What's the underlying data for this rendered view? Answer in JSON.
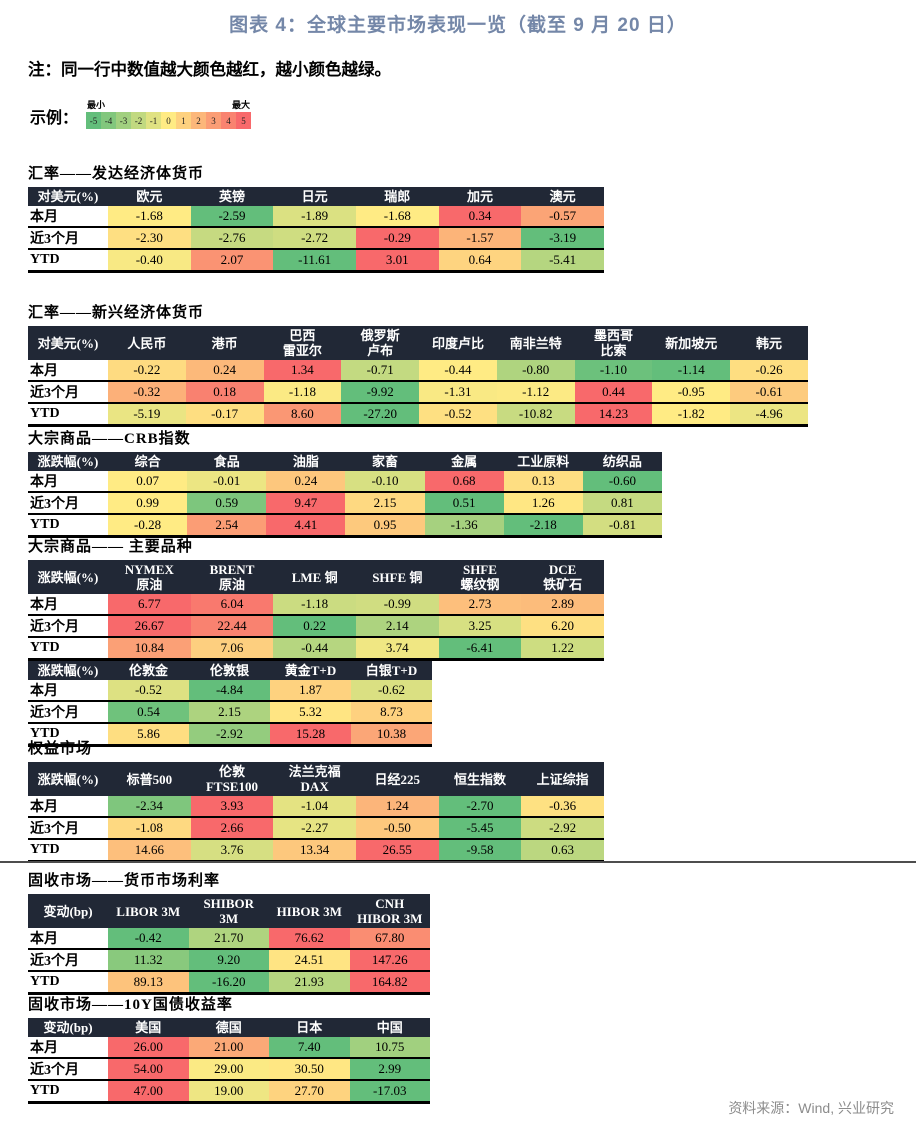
{
  "title": "图表 4：全球主要市场表现一览（截至 9 月 20 日）",
  "note": "注：同一行中数值越大颜色越红，越小颜色越绿。",
  "legend": {
    "label": "示例：",
    "min_label": "最小",
    "max_label": "最大",
    "values": [
      -5,
      -4,
      -3,
      -2,
      -1,
      0,
      1,
      2,
      3,
      4,
      5
    ]
  },
  "source": "资料来源：Wind, 兴业研究",
  "colors": {
    "scale_min_green": "#63BE7B",
    "scale_mid_yellow": "#FFEB84",
    "scale_max_red": "#F8696B",
    "header_bg": "#212836",
    "header_text": "#FFFFFF",
    "title_text": "#7487A8",
    "divider": "#4D4D4D",
    "source_text": "#8C8C8C"
  },
  "chart_data": {
    "type": "heatmap",
    "color_rule": "row-wise 3-color scale: row max = red, row median = yellow, row min = green",
    "tables": [
      {
        "id": "fx-developed",
        "label": "汇率——发达经济体货币",
        "shared_row_scale": false,
        "segments": [
          {
            "corner": "对美元(%)",
            "columns": [
              "欧元",
              "英镑",
              "日元",
              "瑞郎",
              "加元",
              "澳元"
            ],
            "rows": [
              {
                "label": "本月",
                "values": [
                  -1.68,
                  -2.59,
                  -1.89,
                  -1.68,
                  0.34,
                  -0.57
                ]
              },
              {
                "label": "近3个月",
                "values": [
                  -2.3,
                  -2.76,
                  -2.72,
                  -0.29,
                  -1.57,
                  -3.19
                ]
              },
              {
                "label": "YTD",
                "values": [
                  -0.4,
                  2.07,
                  -11.61,
                  3.01,
                  0.64,
                  -5.41
                ]
              }
            ]
          }
        ]
      },
      {
        "id": "fx-emerging",
        "label": "汇率——新兴经济体货币",
        "shared_row_scale": false,
        "segments": [
          {
            "corner": "对美元(%)",
            "columns": [
              "人民币",
              "港币",
              "巴西\n雷亚尔",
              "俄罗斯\n卢布",
              "印度卢比",
              "南非兰特",
              "墨西哥\n比索",
              "新加坡元",
              "韩元"
            ],
            "rows": [
              {
                "label": "本月",
                "values": [
                  -0.22,
                  0.24,
                  1.34,
                  -0.71,
                  -0.44,
                  -0.8,
                  -1.1,
                  -1.14,
                  -0.26
                ]
              },
              {
                "label": "近3个月",
                "values": [
                  -0.32,
                  0.18,
                  -1.18,
                  -9.92,
                  -1.31,
                  -1.12,
                  0.44,
                  -0.95,
                  -0.61
                ]
              },
              {
                "label": "YTD",
                "values": [
                  -5.19,
                  -0.17,
                  8.6,
                  -27.2,
                  -0.52,
                  -10.82,
                  14.23,
                  -1.82,
                  -4.96
                ]
              }
            ]
          }
        ]
      },
      {
        "id": "crb",
        "label": "大宗商品——CRB指数",
        "shared_row_scale": false,
        "segments": [
          {
            "corner": "涨跌幅(%)",
            "columns": [
              "综合",
              "食品",
              "油脂",
              "家畜",
              "金属",
              "工业原料",
              "纺织品"
            ],
            "rows": [
              {
                "label": "本月",
                "values": [
                  0.07,
                  -0.01,
                  0.24,
                  -0.1,
                  0.68,
                  0.13,
                  -0.6
                ]
              },
              {
                "label": "近3个月",
                "values": [
                  0.99,
                  0.59,
                  9.47,
                  2.15,
                  0.51,
                  1.26,
                  0.81
                ]
              },
              {
                "label": "YTD",
                "values": [
                  -0.28,
                  2.54,
                  4.41,
                  0.95,
                  -1.36,
                  -2.18,
                  -0.81
                ]
              }
            ]
          }
        ]
      },
      {
        "id": "commodities",
        "label": "大宗商品—— 主要品种",
        "shared_row_scale": true,
        "segments": [
          {
            "corner": "涨跌幅(%)",
            "columns": [
              "NYMEX\n原油",
              "BRENT\n原油",
              "LME 铜",
              "SHFE 铜",
              "SHFE\n螺纹钢",
              "DCE\n铁矿石"
            ],
            "rows": [
              {
                "label": "本月",
                "values": [
                  6.77,
                  6.04,
                  -1.18,
                  -0.99,
                  2.73,
                  2.89
                ]
              },
              {
                "label": "近3个月",
                "values": [
                  26.67,
                  22.44,
                  0.22,
                  2.14,
                  3.25,
                  6.2
                ]
              },
              {
                "label": "YTD",
                "values": [
                  10.84,
                  7.06,
                  -0.44,
                  3.74,
                  -6.41,
                  1.22
                ]
              }
            ]
          },
          {
            "corner": "涨跌幅(%)",
            "columns": [
              "伦敦金",
              "伦敦银",
              "黄金T+D",
              "白银T+D"
            ],
            "rows": [
              {
                "label": "本月",
                "values": [
                  -0.52,
                  -4.84,
                  1.87,
                  -0.62
                ]
              },
              {
                "label": "近3个月",
                "values": [
                  0.54,
                  2.15,
                  5.32,
                  8.73
                ]
              },
              {
                "label": "YTD",
                "values": [
                  5.86,
                  -2.92,
                  15.28,
                  10.38
                ]
              }
            ]
          }
        ]
      },
      {
        "id": "equity",
        "label": "权益市场",
        "shared_row_scale": false,
        "segments": [
          {
            "corner": "涨跌幅(%)",
            "columns": [
              "标普500",
              "伦敦\nFTSE100",
              "法兰克福\nDAX",
              "日经225",
              "恒生指数",
              "上证综指"
            ],
            "rows": [
              {
                "label": "本月",
                "values": [
                  -2.34,
                  3.93,
                  -1.04,
                  1.24,
                  -2.7,
                  -0.36
                ]
              },
              {
                "label": "近3个月",
                "values": [
                  -1.08,
                  2.66,
                  -2.27,
                  -0.5,
                  -5.45,
                  -2.92
                ]
              },
              {
                "label": "YTD",
                "values": [
                  14.66,
                  3.76,
                  13.34,
                  26.55,
                  -9.58,
                  0.63
                ]
              }
            ]
          }
        ]
      },
      {
        "id": "money-rates",
        "label": "固收市场——货币市场利率",
        "shared_row_scale": false,
        "segments": [
          {
            "corner": "变动(bp)",
            "columns": [
              "LIBOR 3M",
              "SHIBOR\n3M",
              "HIBOR 3M",
              "CNH\nHIBOR 3M"
            ],
            "rows": [
              {
                "label": "本月",
                "values": [
                  -0.42,
                  21.7,
                  76.62,
                  67.8
                ]
              },
              {
                "label": "近3个月",
                "values": [
                  11.32,
                  9.2,
                  24.51,
                  147.26
                ]
              },
              {
                "label": "YTD",
                "values": [
                  89.13,
                  -16.2,
                  21.93,
                  164.82
                ]
              }
            ]
          }
        ]
      },
      {
        "id": "bond-10y",
        "label": "固收市场——10Y国债收益率",
        "shared_row_scale": false,
        "segments": [
          {
            "corner": "变动(bp)",
            "columns": [
              "美国",
              "德国",
              "日本",
              "中国"
            ],
            "rows": [
              {
                "label": "本月",
                "values": [
                  26.0,
                  21.0,
                  7.4,
                  10.75
                ]
              },
              {
                "label": "近3个月",
                "values": [
                  54.0,
                  29.0,
                  30.5,
                  2.99
                ]
              },
              {
                "label": "YTD",
                "values": [
                  47.0,
                  19.0,
                  27.7,
                  -17.03
                ]
              }
            ]
          }
        ]
      }
    ]
  }
}
